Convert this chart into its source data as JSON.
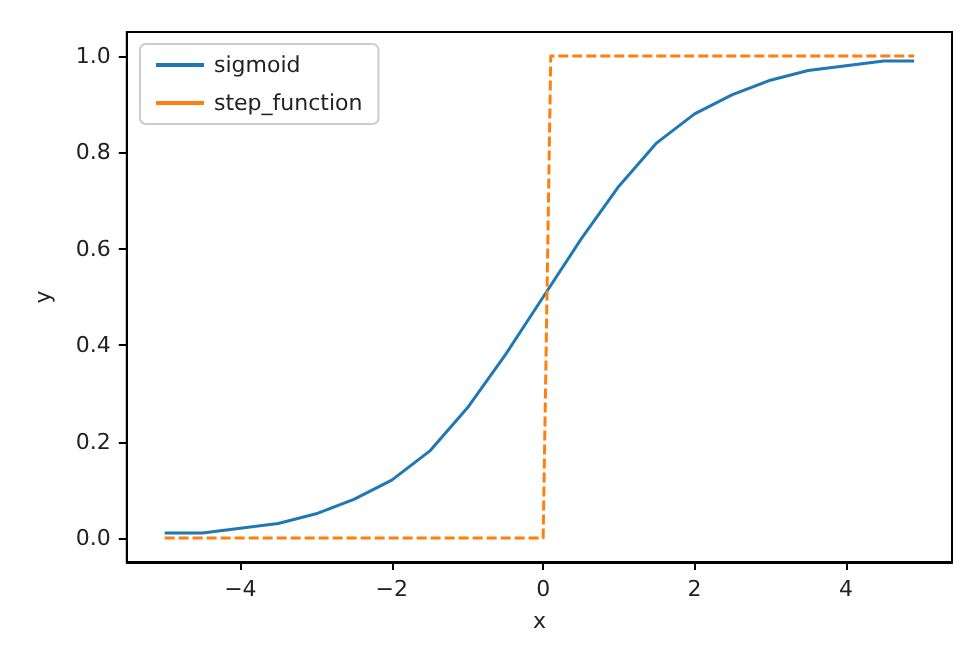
{
  "chart_data": {
    "type": "line",
    "xlabel": "x",
    "ylabel": "y",
    "xlim": [
      -5.5,
      5.4
    ],
    "ylim": [
      -0.05,
      1.05
    ],
    "xticks": [
      {
        "value": -4,
        "label": "−4"
      },
      {
        "value": -2,
        "label": "−2"
      },
      0,
      2,
      4
    ],
    "yticks": [
      {
        "value": 0,
        "label": "0.0"
      },
      0.2,
      0.4,
      0.6,
      0.8,
      {
        "value": 1,
        "label": "1.0"
      }
    ],
    "grid": false,
    "legend": "top left",
    "marker": "none",
    "series": [
      {
        "name": "sigmoid",
        "color": "#1f77b4",
        "line_style": "solid",
        "x": [
          -5,
          -4.5,
          -4,
          -3.5,
          -3,
          -2.5,
          -2,
          -1.5,
          -1,
          -0.5,
          0,
          0.5,
          1,
          1.5,
          2,
          2.5,
          3,
          3.5,
          4,
          4.5,
          4.9
        ],
        "values": [
          0.01,
          0.01,
          0.02,
          0.03,
          0.05,
          0.08,
          0.12,
          0.18,
          0.27,
          0.38,
          0.5,
          0.62,
          0.73,
          0.82,
          0.88,
          0.92,
          0.95,
          0.97,
          0.98,
          0.99,
          0.99
        ]
      },
      {
        "name": "step_function",
        "color": "#ff7f0e",
        "line_style": "dashed",
        "x": [
          -5,
          0,
          0.1,
          4.9
        ],
        "values": [
          0,
          0,
          1,
          1
        ]
      }
    ]
  }
}
